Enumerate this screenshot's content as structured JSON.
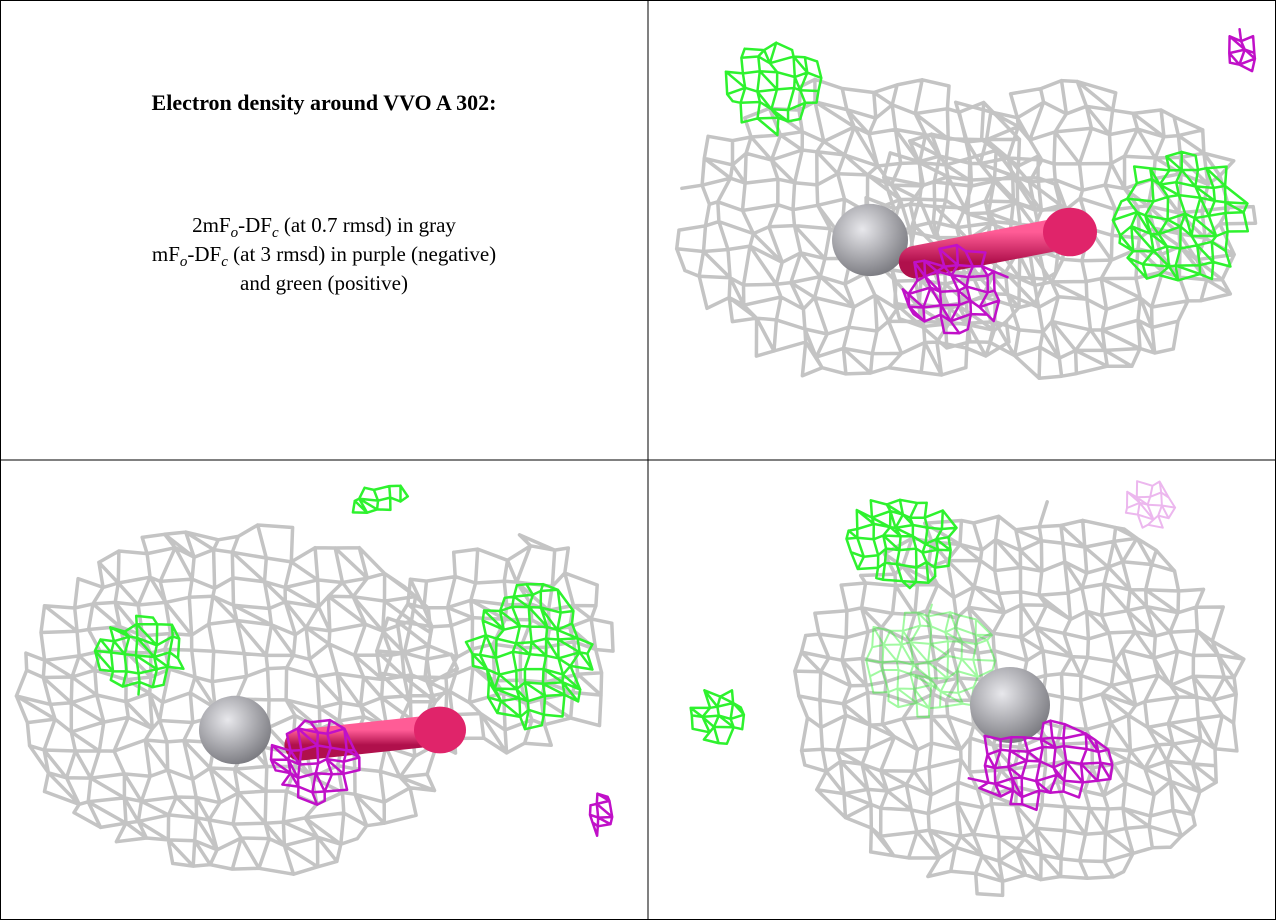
{
  "caption": {
    "title": "Electron density around VVO A 302:",
    "line1": {
      "a": "2mF",
      "sub1": "o",
      "b": "-DF",
      "sub2": "c",
      "c": " (at 0.7 rmsd) in gray"
    },
    "line2": {
      "a": "mF",
      "sub1": "o",
      "b": "-DF",
      "sub2": "c",
      "c": " (at 3 rmsd) in purple (negative)"
    },
    "line3": "and green (positive)"
  }
}
